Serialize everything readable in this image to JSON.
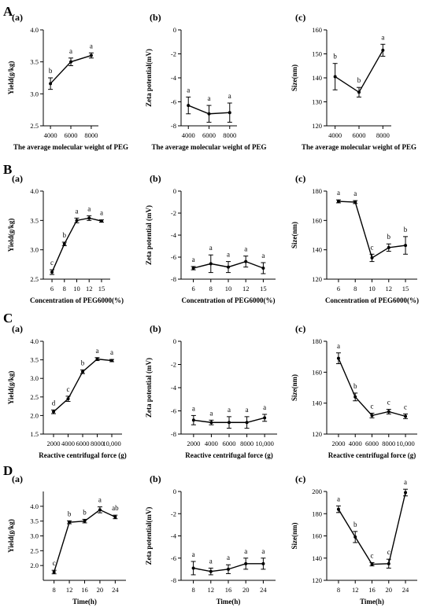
{
  "rows": [
    {
      "letter": "A"
    },
    {
      "letter": "B"
    },
    {
      "letter": "C"
    },
    {
      "letter": "D"
    }
  ],
  "chart_data": [
    {
      "type": "line",
      "row": "A",
      "panel_label": "(a)",
      "xlabel": "The average molecular weight of PEG",
      "ylabel": "Yield(g/kg)",
      "x": [
        4000,
        6000,
        8000
      ],
      "x_tick_labels": [
        "4000",
        "6000",
        "8000"
      ],
      "y": [
        3.16,
        3.5,
        3.6
      ],
      "err": [
        0.09,
        0.06,
        0.04
      ],
      "letters": [
        "b",
        "a",
        "a"
      ],
      "ylim": [
        2.5,
        4.0
      ],
      "y_ticks": [
        2.5,
        3.0,
        3.5,
        4.0
      ],
      "y_tick_labels": [
        "2.5",
        "3.0",
        "3.5",
        "4.0"
      ],
      "y_inverted": false
    },
    {
      "type": "line",
      "row": "A",
      "panel_label": "(b)",
      "xlabel": "The average molecular weight of PEG",
      "ylabel": "Zeta potential(mV)",
      "x": [
        4000,
        6000,
        8000
      ],
      "x_tick_labels": [
        "4000",
        "6000",
        "8000"
      ],
      "y": [
        -6.3,
        -7.0,
        -6.9
      ],
      "err": [
        0.7,
        0.7,
        0.8
      ],
      "letters": [
        "a",
        "a",
        "a"
      ],
      "ylim": [
        -8,
        0
      ],
      "y_ticks": [
        -8,
        -6,
        -4,
        -2,
        0
      ],
      "y_tick_labels": [
        "-8",
        "-6",
        "-4",
        "-2",
        "0"
      ],
      "y_inverted": true
    },
    {
      "type": "line",
      "row": "A",
      "panel_label": "(c)",
      "xlabel": "The average molecular weight of PEG",
      "ylabel": "Size(nm)",
      "x": [
        4000,
        6000,
        8000
      ],
      "x_tick_labels": [
        "4000",
        "6000",
        "8000"
      ],
      "y": [
        140.5,
        134.0,
        151.5
      ],
      "err": [
        5.5,
        2.0,
        2.5
      ],
      "letters": [
        "b",
        "b",
        "a"
      ],
      "ylim": [
        120,
        160
      ],
      "y_ticks": [
        120,
        130,
        140,
        150,
        160
      ],
      "y_tick_labels": [
        "120",
        "130",
        "140",
        "150",
        "160"
      ],
      "y_inverted": false
    },
    {
      "type": "line",
      "row": "B",
      "panel_label": "(a)",
      "xlabel": "Concentration of PEG6000(%)",
      "ylabel": "Yield(g/kg)",
      "x": [
        6,
        8,
        10,
        12,
        15
      ],
      "x_tick_labels": [
        "6",
        "8",
        "10",
        "12",
        "15"
      ],
      "y": [
        2.62,
        3.1,
        3.5,
        3.54,
        3.49
      ],
      "err": [
        0.04,
        0.03,
        0.04,
        0.04,
        0.02
      ],
      "letters": [
        "c",
        "b",
        "a",
        "a",
        "a"
      ],
      "ylim": [
        2.5,
        4.0
      ],
      "y_ticks": [
        2.5,
        3.0,
        3.5,
        4.0
      ],
      "y_tick_labels": [
        "2.5",
        "3.0",
        "3.5",
        "4.0"
      ],
      "y_inverted": false
    },
    {
      "type": "line",
      "row": "B",
      "panel_label": "(b)",
      "xlabel": "Concentration of PEG6000(%)",
      "ylabel": "Zeta potential (mV)",
      "x": [
        6,
        8,
        10,
        12,
        15
      ],
      "x_tick_labels": [
        "6",
        "8",
        "10",
        "12",
        "15"
      ],
      "y": [
        -7.0,
        -6.6,
        -6.9,
        -6.4,
        -7.0
      ],
      "err": [
        0.15,
        0.8,
        0.5,
        0.5,
        0.5
      ],
      "letters": [
        "a",
        "a",
        "a",
        "a",
        "a"
      ],
      "ylim": [
        -8,
        0
      ],
      "y_ticks": [
        -8,
        -6,
        -4,
        -2,
        0
      ],
      "y_tick_labels": [
        "-8",
        "-6",
        "-4",
        "-2",
        "0"
      ],
      "y_inverted": true
    },
    {
      "type": "line",
      "row": "B",
      "panel_label": "(c)",
      "xlabel": "Concentration of PEG6000(%)",
      "ylabel": "Size(nm)",
      "x": [
        6,
        8,
        10,
        12,
        15
      ],
      "x_tick_labels": [
        "6",
        "8",
        "10",
        "12",
        "15"
      ],
      "y": [
        173,
        172.5,
        134.5,
        141.5,
        143
      ],
      "err": [
        1,
        1,
        2.5,
        2.5,
        6
      ],
      "letters": [
        "a",
        "a",
        "c",
        "b",
        "b"
      ],
      "ylim": [
        120,
        180
      ],
      "y_ticks": [
        120,
        140,
        160,
        180
      ],
      "y_tick_labels": [
        "120",
        "140",
        "160",
        "180"
      ],
      "y_inverted": false
    },
    {
      "type": "line",
      "row": "C",
      "panel_label": "(a)",
      "xlabel": "Reactive centrifugal force (g)",
      "ylabel": "Yield(g/kg)",
      "x": [
        2000,
        4000,
        6000,
        8000,
        10000
      ],
      "x_tick_labels": [
        "2000",
        "4000",
        "6000",
        "8000",
        "10,000"
      ],
      "y": [
        2.1,
        2.45,
        3.18,
        3.52,
        3.48
      ],
      "err": [
        0.05,
        0.07,
        0.05,
        0.04,
        0.03
      ],
      "letters": [
        "d",
        "c",
        "b",
        "a",
        "a"
      ],
      "ylim": [
        1.5,
        4.0
      ],
      "y_ticks": [
        1.5,
        2.0,
        2.5,
        3.0,
        3.5,
        4.0
      ],
      "y_tick_labels": [
        "1.5",
        "2.0",
        "2.5",
        "3.0",
        "3.5",
        "4.0"
      ],
      "y_inverted": false
    },
    {
      "type": "line",
      "row": "C",
      "panel_label": "(b)",
      "xlabel": "Reactive centrifugal force (g)",
      "ylabel": "Zeta potential (mV)",
      "x": [
        2000,
        4000,
        6000,
        8000,
        10000
      ],
      "x_tick_labels": [
        "2000",
        "4000",
        "6000",
        "8000",
        "10,000"
      ],
      "y": [
        -6.8,
        -7.0,
        -7.0,
        -7.0,
        -6.6
      ],
      "err": [
        0.4,
        0.2,
        0.5,
        0.5,
        0.3
      ],
      "letters": [
        "a",
        "a",
        "a",
        "a",
        "a"
      ],
      "ylim": [
        -8,
        0
      ],
      "y_ticks": [
        -8,
        -6,
        -4,
        -2,
        0
      ],
      "y_tick_labels": [
        "-8",
        "-6",
        "-4",
        "-2",
        "0"
      ],
      "y_inverted": true
    },
    {
      "type": "line",
      "row": "C",
      "panel_label": "(c)",
      "xlabel": "Reactive centrifugal force (g)",
      "ylabel": "Size(nm)",
      "x": [
        2000,
        4000,
        6000,
        8000,
        10000
      ],
      "x_tick_labels": [
        "2000",
        "4000",
        "6000",
        "8000",
        "10,000"
      ],
      "y": [
        169,
        144,
        132,
        134.5,
        131.5
      ],
      "err": [
        3.5,
        2.5,
        1.5,
        1.5,
        1.5
      ],
      "letters": [
        "a",
        "b",
        "c",
        "c",
        "c"
      ],
      "ylim": [
        120,
        180
      ],
      "y_ticks": [
        120,
        140,
        160,
        180
      ],
      "y_tick_labels": [
        "120",
        "140",
        "160",
        "180"
      ],
      "y_inverted": false
    },
    {
      "type": "line",
      "row": "D",
      "panel_label": "(a)",
      "xlabel": "Time(h)",
      "ylabel": "Yield(g/kg)",
      "x": [
        8,
        12,
        16,
        20,
        24
      ],
      "x_tick_labels": [
        "8",
        "12",
        "16",
        "20",
        "24"
      ],
      "y": [
        1.78,
        3.46,
        3.5,
        3.88,
        3.64
      ],
      "err": [
        0.06,
        0.05,
        0.06,
        0.1,
        0.06
      ],
      "letters": [
        "c",
        "b",
        "b",
        "a",
        "ab"
      ],
      "ylim": [
        1.5,
        4.5
      ],
      "y_ticks": [
        2.0,
        2.5,
        3.0,
        3.5,
        4.0
      ],
      "y_tick_labels": [
        "2.0",
        "2.5",
        "3.0",
        "3.5",
        "4.0"
      ],
      "y_inverted": false
    },
    {
      "type": "line",
      "row": "D",
      "panel_label": "(b)",
      "xlabel": "Time(h)",
      "ylabel": "Zeta potential(mV)",
      "x": [
        8,
        12,
        16,
        20,
        24
      ],
      "x_tick_labels": [
        "8",
        "12",
        "16",
        "20",
        "24"
      ],
      "y": [
        -6.9,
        -7.2,
        -7.0,
        -6.5,
        -6.5
      ],
      "err": [
        0.6,
        0.3,
        0.4,
        0.5,
        0.5
      ],
      "letters": [
        "a",
        "a",
        "a",
        "a",
        "a"
      ],
      "ylim": [
        -8,
        0
      ],
      "y_ticks": [
        -8,
        -6,
        -4,
        -2,
        0
      ],
      "y_tick_labels": [
        "-8",
        "-6",
        "-4",
        "-2",
        "0"
      ],
      "y_inverted": true
    },
    {
      "type": "line",
      "row": "D",
      "panel_label": "(c)",
      "xlabel": "Time(h)",
      "ylabel": "Size(nm)",
      "x": [
        8,
        12,
        16,
        20,
        24
      ],
      "x_tick_labels": [
        "8",
        "12",
        "16",
        "20",
        "24"
      ],
      "y": [
        184,
        159,
        134.5,
        135,
        199
      ],
      "err": [
        3,
        5,
        1.5,
        4,
        3
      ],
      "letters": [
        "a",
        "b",
        "c",
        "c",
        "a"
      ],
      "ylim": [
        120,
        200
      ],
      "y_ticks": [
        120,
        140,
        160,
        180,
        200
      ],
      "y_tick_labels": [
        "120",
        "140",
        "160",
        "180",
        "200"
      ],
      "y_inverted": false
    }
  ]
}
